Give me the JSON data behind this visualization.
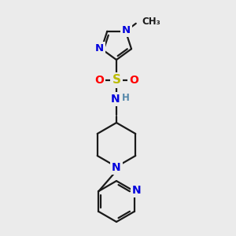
{
  "bg_color": "#ebebeb",
  "bond_color": "#1a1a1a",
  "atom_colors": {
    "N": "#0000dd",
    "S": "#bbbb00",
    "O": "#ff0000",
    "H": "#5588aa",
    "C": "#1a1a1a"
  },
  "figsize": [
    3.0,
    3.0
  ],
  "dpi": 100,
  "bond_lw": 1.6,
  "font_size": 9.5
}
